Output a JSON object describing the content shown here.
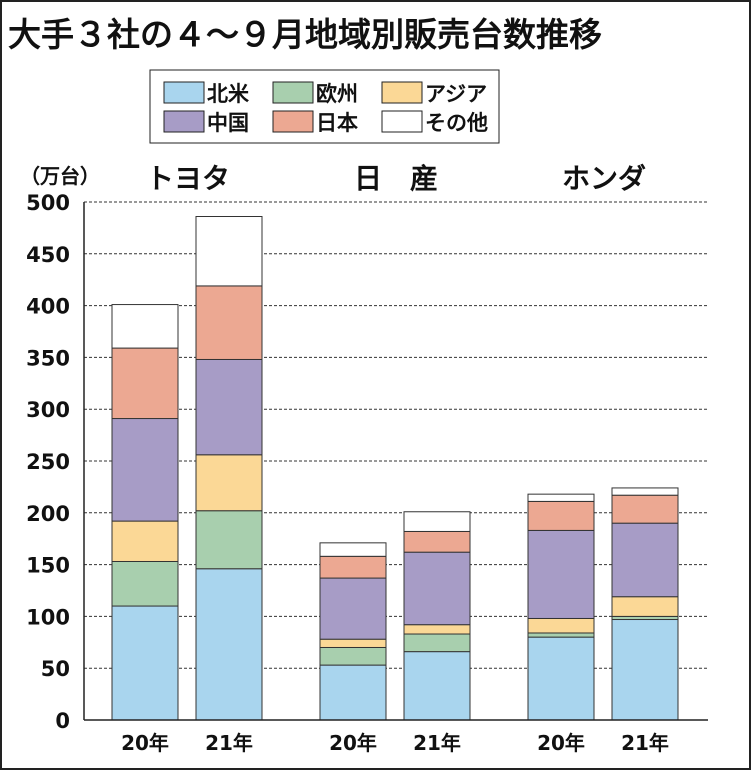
{
  "chart_data": {
    "type": "bar",
    "stacked": true,
    "title": "大手３社の４〜９月地域別販売台数推移",
    "ylabel": "（万台）",
    "ylim": [
      0,
      500
    ],
    "yticks": [
      0,
      50,
      100,
      150,
      200,
      250,
      300,
      350,
      400,
      450,
      500
    ],
    "grid": "dashed-horizontal",
    "legend_position": "top-center",
    "groups": [
      "トヨタ",
      "日　産",
      "ホンダ"
    ],
    "categories": [
      "20年",
      "21年",
      "20年",
      "21年",
      "20年",
      "21年"
    ],
    "series": [
      {
        "name": "北米",
        "color": "#a9d5ee",
        "values": [
          110,
          146,
          53,
          66,
          80,
          97
        ]
      },
      {
        "name": "欧州",
        "color": "#a8cfae",
        "values": [
          43,
          56,
          17,
          17,
          4,
          3
        ]
      },
      {
        "name": "アジア",
        "color": "#fbd896",
        "values": [
          39,
          54,
          8,
          9,
          14,
          19
        ]
      },
      {
        "name": "中国",
        "color": "#a79cc6",
        "values": [
          99,
          92,
          59,
          70,
          85,
          71
        ]
      },
      {
        "name": "日本",
        "color": "#eca892",
        "values": [
          68,
          71,
          21,
          20,
          28,
          27
        ]
      },
      {
        "name": "その他",
        "color": "#ffffff",
        "values": [
          42,
          67,
          13,
          19,
          7,
          7
        ]
      }
    ]
  }
}
